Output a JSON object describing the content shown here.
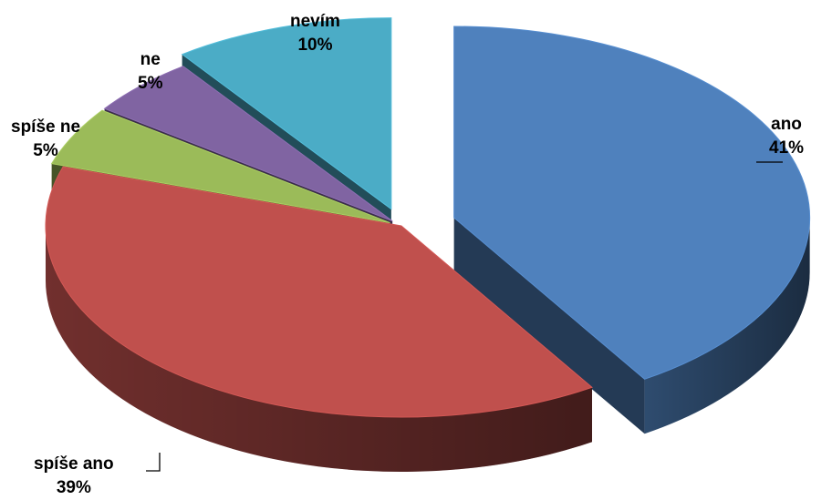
{
  "chart_data": {
    "type": "pie",
    "style": "3d-exploded",
    "categories": [
      "ano",
      "spíše ano",
      "spíše ne",
      "ne",
      "nevím"
    ],
    "values": [
      41,
      39,
      5,
      5,
      10
    ],
    "labels": [
      "41%",
      "39%",
      "5%",
      "5%",
      "10%"
    ],
    "colors": [
      "#4f81bd",
      "#c0504d",
      "#9bbb59",
      "#8064a2",
      "#4bacc6"
    ]
  }
}
